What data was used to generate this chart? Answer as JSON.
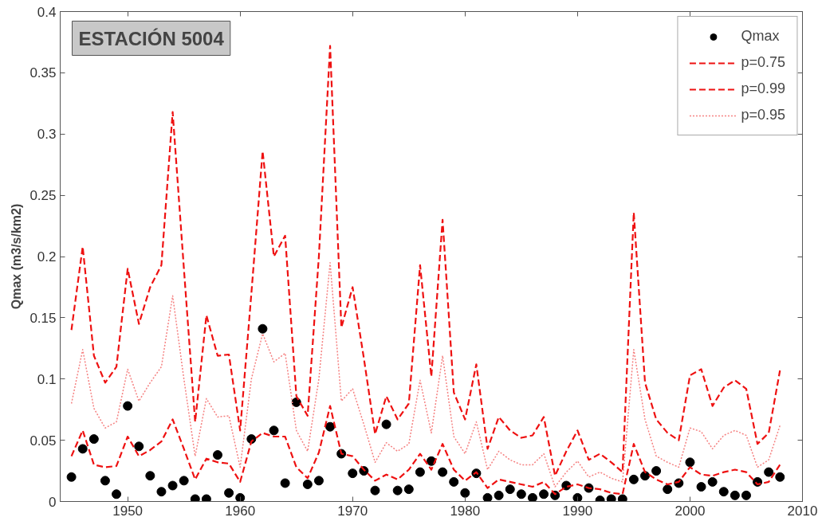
{
  "chart_data": {
    "type": "line",
    "title": "ESTACIÓN 5004",
    "ylabel": "Qmax (m3/s/km2)",
    "x": [
      1945,
      1946,
      1947,
      1948,
      1949,
      1950,
      1951,
      1952,
      1953,
      1954,
      1955,
      1956,
      1957,
      1958,
      1959,
      1960,
      1961,
      1962,
      1963,
      1964,
      1965,
      1966,
      1967,
      1968,
      1969,
      1970,
      1971,
      1972,
      1973,
      1974,
      1975,
      1976,
      1977,
      1978,
      1979,
      1980,
      1981,
      1982,
      1983,
      1984,
      1985,
      1986,
      1987,
      1988,
      1989,
      1990,
      1991,
      1992,
      1993,
      1994,
      1995,
      1996,
      1997,
      1998,
      1999,
      2000,
      2001,
      2002,
      2003,
      2004,
      2005,
      2006,
      2007,
      2008
    ],
    "series": [
      {
        "name": "Qmax",
        "type": "scatter",
        "marker": "circle",
        "color": "#000000",
        "values": [
          0.02,
          0.043,
          0.051,
          0.017,
          0.006,
          0.078,
          0.045,
          0.021,
          0.008,
          0.013,
          0.017,
          0.002,
          0.002,
          0.038,
          0.007,
          0.003,
          0.051,
          0.141,
          0.058,
          0.015,
          0.081,
          0.014,
          0.017,
          0.061,
          0.039,
          0.023,
          0.025,
          0.009,
          0.063,
          0.009,
          0.01,
          0.024,
          0.033,
          0.024,
          0.016,
          0.007,
          0.023,
          0.003,
          0.005,
          0.01,
          0.006,
          0.003,
          0.006,
          0.005,
          0.013,
          0.003,
          0.011,
          0.001,
          0.002,
          0.002,
          0.018,
          0.021,
          0.025,
          0.01,
          0.015,
          0.032,
          0.012,
          0.016,
          0.008,
          0.005,
          0.005,
          0.016,
          0.024,
          0.02
        ]
      },
      {
        "name": "p=0.75",
        "line_style": "dashed",
        "color": "#ee1111",
        "values": [
          0.037,
          0.058,
          0.03,
          0.028,
          0.029,
          0.053,
          0.037,
          0.042,
          0.049,
          0.067,
          0.043,
          0.018,
          0.035,
          0.032,
          0.031,
          0.016,
          0.049,
          0.056,
          0.053,
          0.053,
          0.028,
          0.019,
          0.04,
          0.078,
          0.039,
          0.037,
          0.026,
          0.017,
          0.022,
          0.018,
          0.026,
          0.039,
          0.026,
          0.047,
          0.026,
          0.017,
          0.024,
          0.011,
          0.018,
          0.016,
          0.014,
          0.012,
          0.016,
          0.006,
          0.012,
          0.014,
          0.011,
          0.01,
          0.007,
          0.006,
          0.047,
          0.024,
          0.018,
          0.014,
          0.016,
          0.028,
          0.022,
          0.021,
          0.024,
          0.026,
          0.024,
          0.014,
          0.016,
          0.03
        ]
      },
      {
        "name": "p=0.99",
        "line_style": "dashed",
        "color": "#ee1111",
        "values": [
          0.14,
          0.208,
          0.119,
          0.097,
          0.11,
          0.19,
          0.145,
          0.175,
          0.193,
          0.318,
          0.19,
          0.065,
          0.152,
          0.119,
          0.12,
          0.058,
          0.17,
          0.286,
          0.2,
          0.217,
          0.086,
          0.07,
          0.2,
          0.372,
          0.142,
          0.175,
          0.117,
          0.055,
          0.086,
          0.067,
          0.08,
          0.193,
          0.102,
          0.23,
          0.089,
          0.067,
          0.112,
          0.043,
          0.069,
          0.058,
          0.052,
          0.054,
          0.069,
          0.021,
          0.041,
          0.058,
          0.034,
          0.039,
          0.032,
          0.024,
          0.236,
          0.097,
          0.067,
          0.056,
          0.05,
          0.103,
          0.108,
          0.078,
          0.093,
          0.099,
          0.092,
          0.047,
          0.056,
          0.107
        ]
      },
      {
        "name": "p=0.95",
        "line_style": "dotted",
        "color": "#f58080",
        "values": [
          0.08,
          0.124,
          0.076,
          0.06,
          0.065,
          0.108,
          0.082,
          0.097,
          0.11,
          0.168,
          0.1,
          0.037,
          0.084,
          0.069,
          0.07,
          0.028,
          0.1,
          0.137,
          0.114,
          0.121,
          0.058,
          0.041,
          0.1,
          0.195,
          0.082,
          0.092,
          0.063,
          0.032,
          0.048,
          0.041,
          0.047,
          0.099,
          0.056,
          0.119,
          0.053,
          0.039,
          0.065,
          0.026,
          0.041,
          0.034,
          0.03,
          0.03,
          0.039,
          0.012,
          0.024,
          0.033,
          0.02,
          0.024,
          0.019,
          0.016,
          0.124,
          0.067,
          0.037,
          0.032,
          0.028,
          0.06,
          0.057,
          0.043,
          0.054,
          0.058,
          0.054,
          0.028,
          0.034,
          0.062
        ]
      }
    ],
    "xlim": [
      1944,
      2010
    ],
    "xticks": [
      1950,
      1960,
      1970,
      1980,
      1990,
      2000,
      2010
    ],
    "ylim": [
      0,
      0.4
    ],
    "yticks": [
      0,
      0.05,
      0.1,
      0.15,
      0.2,
      0.25,
      0.3,
      0.35,
      0.4
    ],
    "grid": false,
    "legend": "top right"
  }
}
